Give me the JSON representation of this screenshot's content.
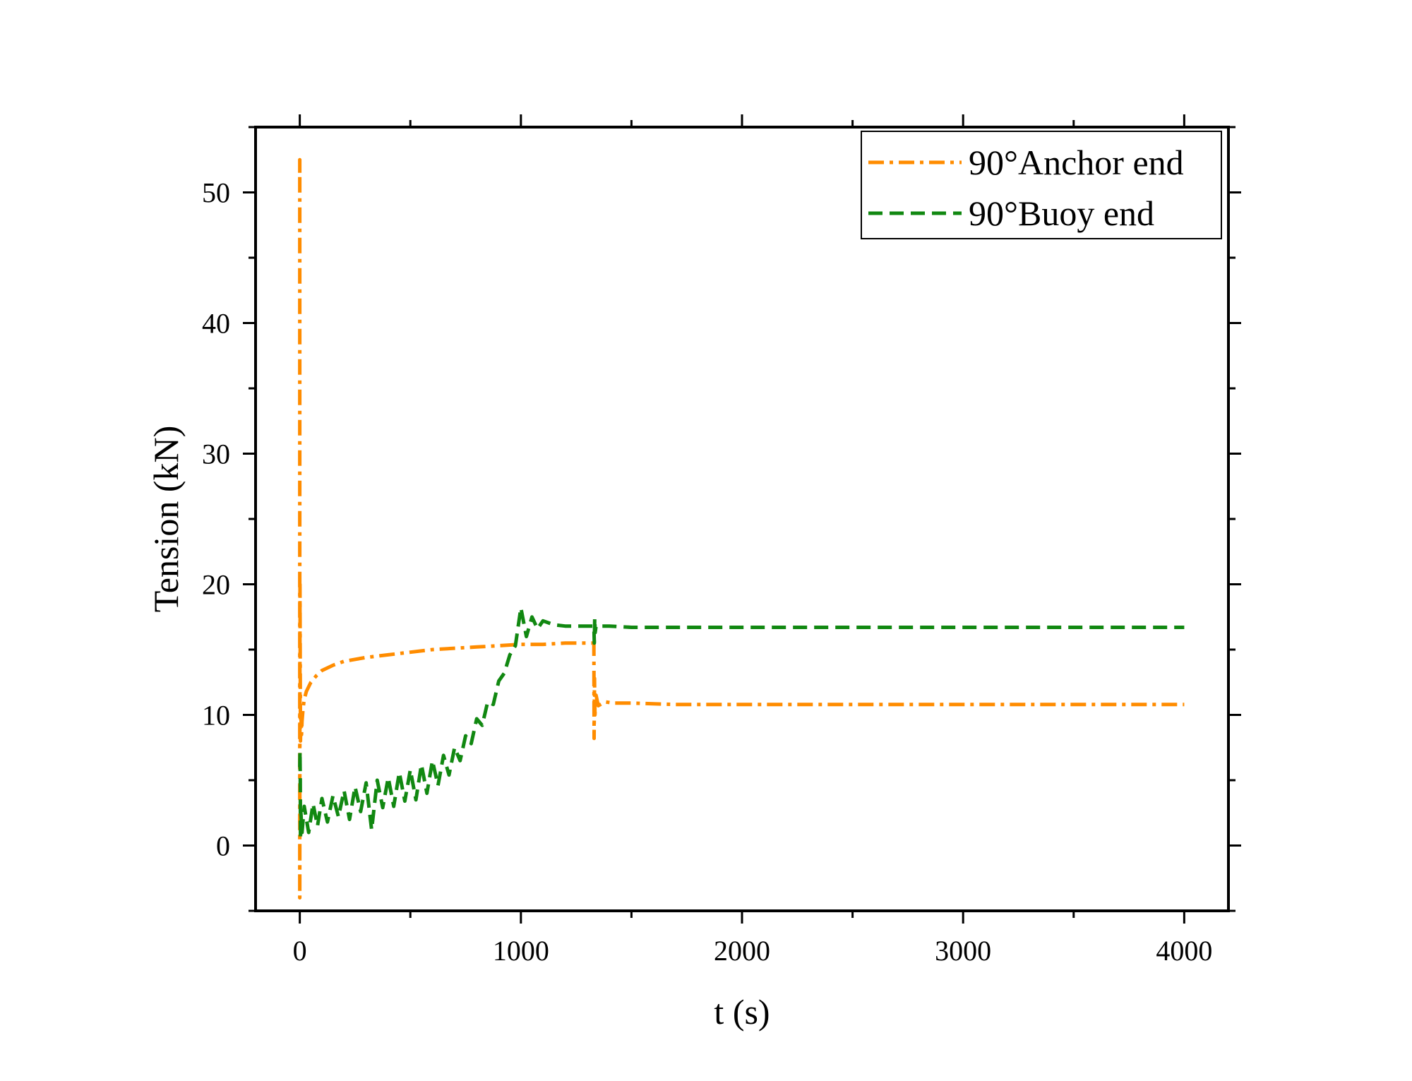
{
  "chart_data": {
    "type": "line",
    "title": "",
    "xlabel": "t (s)",
    "ylabel": "Tension (kN)",
    "xlim": [
      -200,
      4200
    ],
    "ylim": [
      -5,
      55
    ],
    "xticks": [
      0,
      1000,
      2000,
      3000,
      4000
    ],
    "yticks": [
      0,
      10,
      20,
      30,
      40,
      50
    ],
    "grid": false,
    "legend_position": "top-right",
    "series": [
      {
        "name": "90°Anchor end",
        "color": "#FF8C00",
        "line_style": "dash-dot",
        "x": [
          0,
          0,
          0,
          1,
          3,
          5,
          8,
          10,
          15,
          20,
          30,
          50,
          75,
          100,
          150,
          200,
          300,
          400,
          500,
          600,
          700,
          800,
          900,
          1000,
          1100,
          1200,
          1320,
          1330,
          1331,
          1333,
          1335,
          1340,
          1350,
          1380,
          1420,
          1500,
          1700,
          2000,
          2500,
          3000,
          3500,
          4000
        ],
        "y": [
          51.5,
          52.5,
          -4,
          20,
          8,
          10,
          8.5,
          9.5,
          10.5,
          11.2,
          11.8,
          12.5,
          13.0,
          13.4,
          13.8,
          14.1,
          14.4,
          14.6,
          14.8,
          15.0,
          15.1,
          15.2,
          15.3,
          15.4,
          15.4,
          15.5,
          15.5,
          15.5,
          8.2,
          12.8,
          10.0,
          11.5,
          10.7,
          11.0,
          10.9,
          10.9,
          10.8,
          10.8,
          10.8,
          10.8,
          10.8,
          10.8
        ]
      },
      {
        "name": "90°Buoy end",
        "color": "#118811",
        "line_style": "dashed",
        "x": [
          0,
          1,
          2,
          3,
          5,
          10,
          20,
          40,
          60,
          80,
          100,
          125,
          150,
          175,
          200,
          225,
          250,
          275,
          300,
          325,
          350,
          375,
          400,
          425,
          450,
          475,
          500,
          525,
          550,
          575,
          600,
          625,
          650,
          675,
          700,
          725,
          750,
          775,
          800,
          825,
          850,
          875,
          900,
          925,
          950,
          975,
          1000,
          1025,
          1050,
          1075,
          1100,
          1150,
          1200,
          1250,
          1300,
          1330,
          1332,
          1334,
          1336,
          1340,
          1360,
          1400,
          1500,
          2000,
          2500,
          3000,
          3500,
          4000
        ],
        "y": [
          6.0,
          7.2,
          5.0,
          0.5,
          2.5,
          1.0,
          3.0,
          1.0,
          3.2,
          1.5,
          3.6,
          1.8,
          3.8,
          2.2,
          4.2,
          2.0,
          4.5,
          2.6,
          4.8,
          1.2,
          5.0,
          2.9,
          5.2,
          3.0,
          5.6,
          3.4,
          5.8,
          3.5,
          6.2,
          4.0,
          6.5,
          4.6,
          6.9,
          5.4,
          7.5,
          6.5,
          8.4,
          7.8,
          9.7,
          9.2,
          11.0,
          10.8,
          12.6,
          13.2,
          14.6,
          15.3,
          18.2,
          16.0,
          17.5,
          16.6,
          17.2,
          16.9,
          16.8,
          16.8,
          16.8,
          16.8,
          15.5,
          17.4,
          16.3,
          16.8,
          16.8,
          16.8,
          16.7,
          16.7,
          16.7,
          16.7,
          16.7,
          16.7
        ]
      }
    ]
  }
}
